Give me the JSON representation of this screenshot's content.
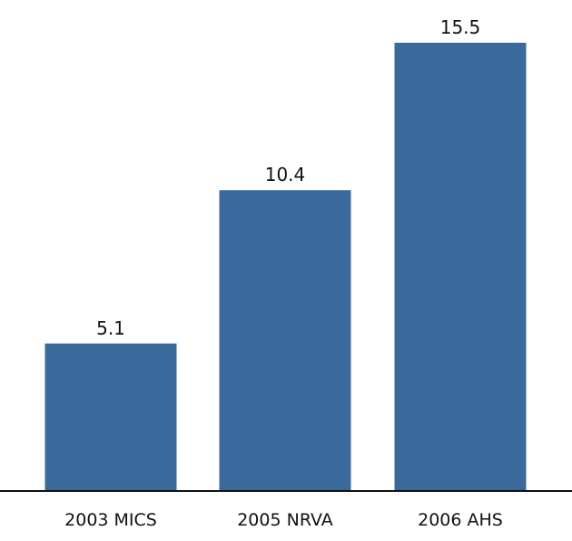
{
  "chart_data": {
    "type": "bar",
    "categories": [
      "2003 MICS",
      "2005 NRVA",
      "2006 AHS"
    ],
    "values": [
      5.1,
      10.4,
      15.5
    ],
    "value_labels": [
      "5.1",
      "10.4",
      "15.5"
    ],
    "title": "",
    "xlabel": "",
    "ylabel": "",
    "ylim": [
      0,
      15.5
    ],
    "grid": false,
    "legend": "none",
    "bar_color": "#3a6a9c",
    "axis_color": "#111111"
  }
}
